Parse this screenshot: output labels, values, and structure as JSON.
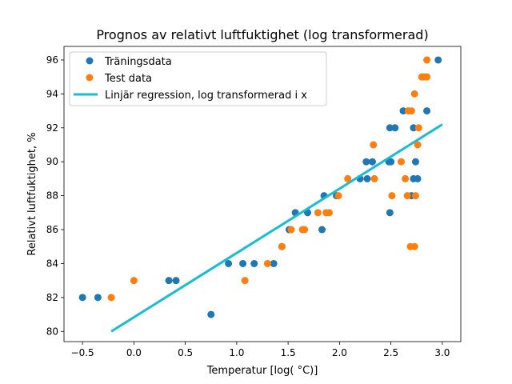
{
  "chart_data": {
    "type": "scatter",
    "title": "Prognos av relativt luftfuktighet (log transformerad)",
    "xlabel": "Temperatur [log( °C)]",
    "ylabel": "Relativt luftfuktighet, %",
    "xlim": [
      -0.68,
      3.18
    ],
    "ylim": [
      79.4,
      96.8
    ],
    "xticks": [
      -0.5,
      0.0,
      0.5,
      1.0,
      1.5,
      2.0,
      2.5,
      3.0
    ],
    "xtick_labels": [
      "−0.5",
      "0.0",
      "0.5",
      "1.0",
      "1.5",
      "2.0",
      "2.5",
      "3.0"
    ],
    "yticks": [
      80,
      82,
      84,
      86,
      88,
      90,
      92,
      94,
      96
    ],
    "ytick_labels": [
      "80",
      "82",
      "84",
      "86",
      "88",
      "90",
      "92",
      "94",
      "96"
    ],
    "grid": false,
    "legend_position": "upper-left",
    "series": [
      {
        "name": "Träningsdata",
        "kind": "scatter",
        "color": "#1f77b4",
        "points": [
          [
            -0.5,
            82
          ],
          [
            -0.35,
            82
          ],
          [
            0.34,
            83
          ],
          [
            0.41,
            83
          ],
          [
            0.75,
            81
          ],
          [
            0.92,
            84
          ],
          [
            1.06,
            84
          ],
          [
            1.17,
            84
          ],
          [
            1.36,
            84
          ],
          [
            1.44,
            85
          ],
          [
            1.51,
            86
          ],
          [
            1.57,
            87
          ],
          [
            1.69,
            87
          ],
          [
            1.83,
            86
          ],
          [
            1.85,
            88
          ],
          [
            1.97,
            88
          ],
          [
            2.2,
            89
          ],
          [
            2.27,
            89
          ],
          [
            2.26,
            90
          ],
          [
            2.32,
            90
          ],
          [
            2.48,
            90
          ],
          [
            2.5,
            90
          ],
          [
            2.49,
            92
          ],
          [
            2.54,
            92
          ],
          [
            2.49,
            87
          ],
          [
            2.62,
            93
          ],
          [
            2.85,
            93
          ],
          [
            2.7,
            88
          ],
          [
            2.72,
            89
          ],
          [
            2.74,
            90
          ],
          [
            2.76,
            89
          ],
          [
            2.72,
            92
          ],
          [
            2.96,
            96
          ]
        ]
      },
      {
        "name": "Test data",
        "kind": "scatter",
        "color": "#ff7f0e",
        "points": [
          [
            -0.22,
            82
          ],
          [
            0.0,
            83
          ],
          [
            1.08,
            83
          ],
          [
            1.3,
            84
          ],
          [
            1.44,
            85
          ],
          [
            1.53,
            86
          ],
          [
            1.64,
            86
          ],
          [
            1.66,
            86
          ],
          [
            1.79,
            87
          ],
          [
            1.87,
            87
          ],
          [
            1.9,
            87
          ],
          [
            1.99,
            88
          ],
          [
            2.08,
            89
          ],
          [
            2.33,
            91
          ],
          [
            2.34,
            89
          ],
          [
            2.51,
            88
          ],
          [
            2.6,
            90
          ],
          [
            2.64,
            89
          ],
          [
            2.66,
            88
          ],
          [
            2.67,
            93
          ],
          [
            2.7,
            93
          ],
          [
            2.69,
            85
          ],
          [
            2.73,
            85
          ],
          [
            2.74,
            88
          ],
          [
            2.73,
            94
          ],
          [
            2.76,
            91
          ],
          [
            2.77,
            92
          ],
          [
            2.8,
            95
          ],
          [
            2.82,
            95
          ],
          [
            2.85,
            95
          ],
          [
            2.85,
            96
          ]
        ]
      },
      {
        "name": "Linjär regression, log transformerad i x",
        "kind": "line",
        "color": "#17becf",
        "points": [
          [
            -0.22,
            80.0
          ],
          [
            3.0,
            92.2
          ]
        ]
      }
    ]
  }
}
